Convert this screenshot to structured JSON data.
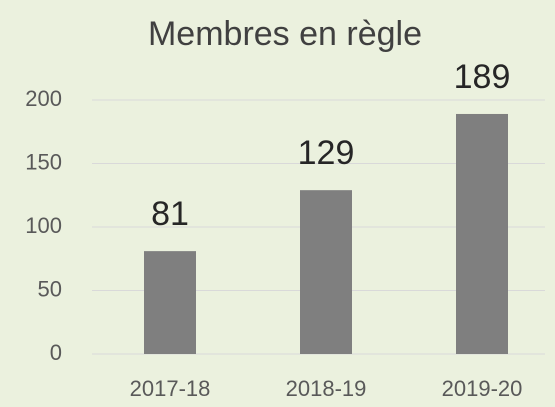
{
  "chart_data": {
    "type": "bar",
    "title": "Membres en règle",
    "categories": [
      "2017-18",
      "2018-19",
      "2019-20"
    ],
    "values": [
      81,
      129,
      189
    ],
    "color": "#7f7f7f",
    "ylim": [
      0,
      200
    ],
    "yticks": [
      0,
      50,
      100,
      150,
      200
    ],
    "grid": true
  }
}
